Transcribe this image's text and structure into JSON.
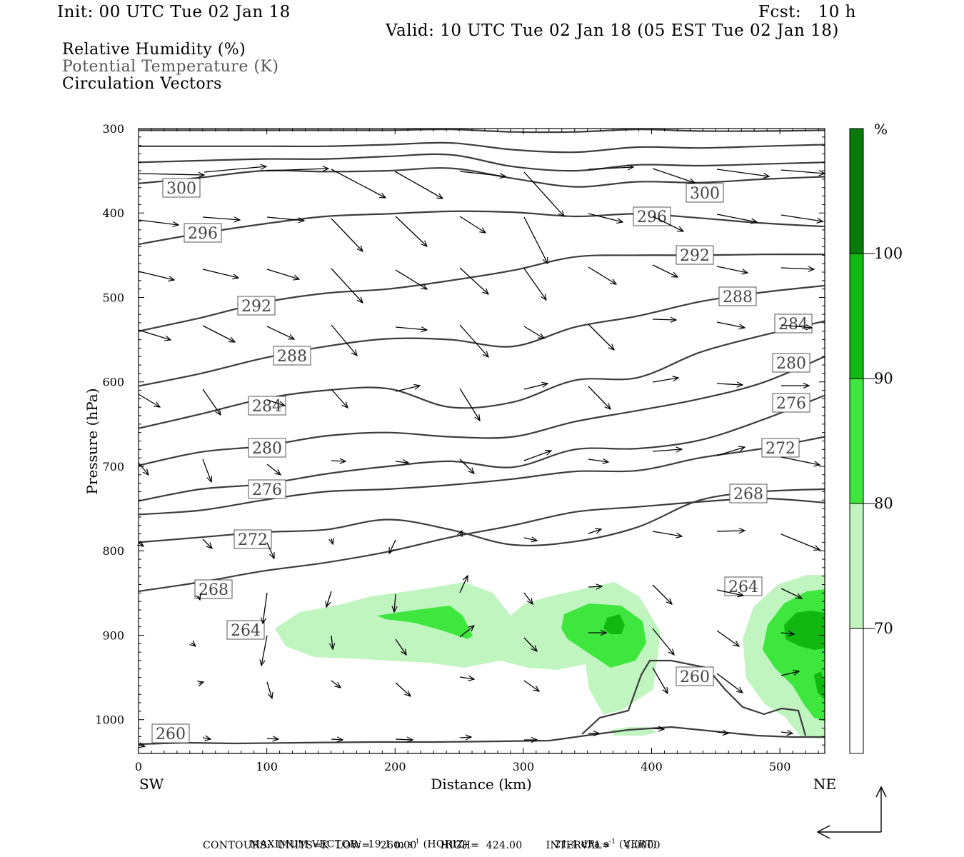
{
  "header": {
    "init": "Init: 00 UTC Tue 02 Jan 18",
    "fcst": "Fcst:   10 h",
    "valid": "Valid: 10 UTC Tue 02 Jan 18 (05 EST Tue 02 Jan 18)"
  },
  "legend": {
    "rh": "Relative Humidity (%)",
    "theta": "Potential Temperature (K)",
    "vectors": "Circulation Vectors"
  },
  "footer": {
    "max_vector_label": "MAXIMUM VECTOR:",
    "max_vector_horiz": "19.1 m s",
    "horiz_unit_exp": "-1",
    "horiz_tag": "(HORIZ)",
    "max_vector_vert": "21.4 dPa s",
    "vert_unit_exp": "-1",
    "vert_tag": "(VERT)",
    "contours": "CONTOURS:  UNITS=K  LOW=   260.00       HIGH=  424.00       INTERVAL=    4.0000"
  },
  "colors": {
    "rh70": "#c0f5c0",
    "rh80": "#3ee63e",
    "rh90": "#10b810",
    "rh100": "#0a7a0a",
    "contour": "#3c3c3c"
  },
  "chart_data": {
    "type": "cross-section",
    "xlabel": "Distance (km)",
    "ylabel": "Pressure (hPa)",
    "xlim": [
      0,
      535
    ],
    "ylim": [
      1040,
      300
    ],
    "xticks": [
      0,
      100,
      200,
      300,
      400,
      500
    ],
    "yticks": [
      300,
      400,
      500,
      600,
      700,
      800,
      900,
      1000
    ],
    "x_endpoints": {
      "left": "SW",
      "right": "NE"
    },
    "colorbar": {
      "unit": "%",
      "levels": [
        70,
        80,
        90,
        100
      ]
    },
    "theta_contours": [
      {
        "k": 312,
        "p": [
          302,
          302,
          302,
          302,
          302,
          301,
          304,
          304,
          301,
          303,
          303,
          302
        ]
      },
      {
        "k": 308,
        "p": [
          321,
          321,
          321,
          321,
          319,
          317,
          325,
          328,
          322,
          323,
          321,
          319
        ]
      },
      {
        "k": 304,
        "p": [
          340,
          338,
          336,
          336,
          333,
          331,
          345,
          350,
          343,
          344,
          342,
          340
        ]
      },
      {
        "k": 300,
        "p": [
          365,
          358,
          350,
          351,
          350,
          347,
          359,
          369,
          363,
          364,
          360,
          357
        ]
      },
      {
        "k": 296,
        "p": [
          437,
          424,
          413,
          404,
          401,
          398,
          399,
          404,
          401,
          406,
          412,
          416
        ]
      },
      {
        "k": 292,
        "p": [
          540,
          524,
          506,
          495,
          490,
          480,
          468,
          452,
          450,
          450,
          449,
          449
        ]
      },
      {
        "k": 288,
        "p": [
          605,
          590,
          572,
          558,
          549,
          550,
          558,
          535,
          522,
          505,
          494,
          486
        ]
      },
      {
        "k": 284,
        "p": [
          655,
          638,
          620,
          610,
          608,
          630,
          624,
          598,
          595,
          565,
          545,
          528
        ]
      },
      {
        "k": 280,
        "p": [
          699,
          683,
          676,
          664,
          660,
          665,
          665,
          647,
          634,
          620,
          601,
          570
        ]
      },
      {
        "k": 276,
        "p": [
          741,
          727,
          721,
          709,
          700,
          694,
          701,
          680,
          679,
          669,
          645,
          616
        ]
      },
      {
        "k": 272,
        "p": [
          757,
          752,
          740,
          730,
          727,
          722,
          715,
          706,
          705,
          690,
          679,
          665
        ]
      },
      {
        "k": 268,
        "p": [
          790,
          784,
          778,
          775,
          763,
          775,
          793,
          789,
          772,
          740,
          730,
          727
        ]
      },
      {
        "k": 264,
        "p": [
          848,
          837,
          824,
          814,
          801,
          784,
          770,
          754,
          748,
          742,
          738,
          743
        ]
      }
    ],
    "contour_labels": [
      "300",
      "300",
      "296",
      "296",
      "292",
      "292",
      "288",
      "288",
      "284",
      "284",
      "280",
      "280",
      "276",
      "276",
      "272",
      "272",
      "268",
      "268",
      "264",
      "264",
      "260",
      "260"
    ],
    "max_vector": {
      "horiz_m_s": 19.1,
      "vert_dPa_s": 21.4
    },
    "contour_info": {
      "units": "K",
      "low": 260.0,
      "high": 424.0,
      "interval": 4.0
    }
  }
}
